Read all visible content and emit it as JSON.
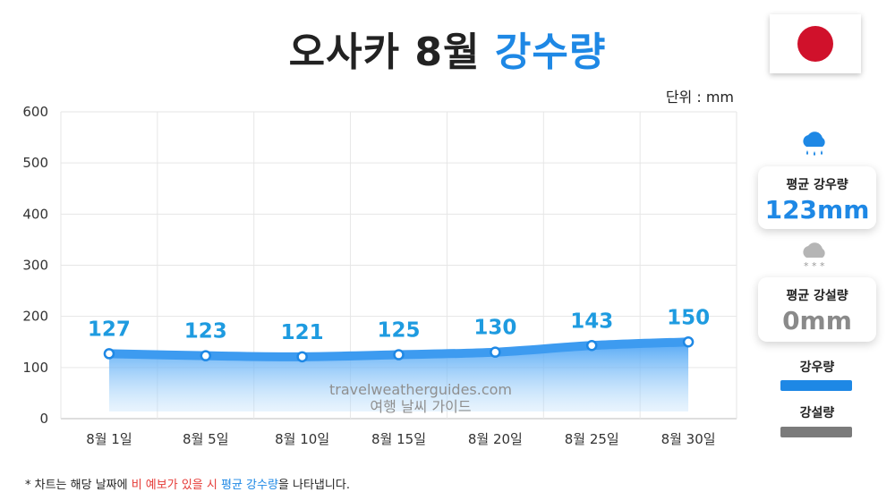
{
  "title": {
    "part1": "오사카 8월",
    "part2": "강수량"
  },
  "unit_label": "단위 : mm",
  "flag": "japan-flag",
  "colors": {
    "rain": "#1e88e5",
    "snow": "#7b7b7b",
    "flag_red": "#d0112b",
    "line": "#3d9bf0"
  },
  "cards": {
    "rain": {
      "label": "평균 강우량",
      "value": "123mm",
      "icon": "rain-cloud-icon"
    },
    "snow": {
      "label": "평균 강설량",
      "value": "0mm",
      "icon": "snow-cloud-icon"
    }
  },
  "legend": {
    "rain": "강우량",
    "snow": "강설량"
  },
  "watermark": {
    "line1": "travelweatherguides.com",
    "line2": "여행 날씨 가이드"
  },
  "footnote": {
    "prefix": "* 차트는 해당 날짜에 ",
    "red": "비 예보가 있을 시",
    "mid": " ",
    "blue": "평균 강수량",
    "suffix": "을 나타냅니다."
  },
  "chart_data": {
    "type": "area",
    "title": "오사카 8월 강수량",
    "unit": "mm",
    "categories": [
      "8월 1일",
      "8월 5일",
      "8월 10일",
      "8월 15일",
      "8월 20일",
      "8월 25일",
      "8월 30일"
    ],
    "series": [
      {
        "name": "강우량",
        "values": [
          127,
          123,
          121,
          125,
          130,
          143,
          150
        ]
      },
      {
        "name": "강설량",
        "values": [
          0,
          0,
          0,
          0,
          0,
          0,
          0
        ]
      }
    ],
    "ylim": [
      0,
      600
    ],
    "yticks": [
      0,
      100,
      200,
      300,
      400,
      500,
      600
    ],
    "grid": true
  }
}
